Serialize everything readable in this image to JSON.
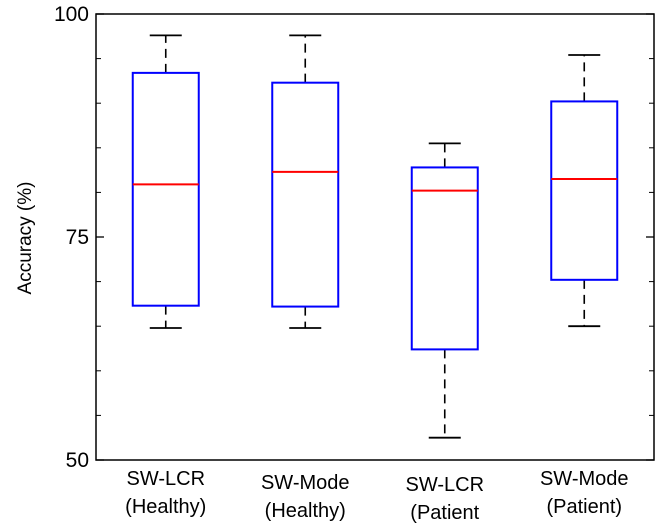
{
  "chart_data": {
    "type": "boxplot",
    "ylabel": "Accuracy (%)",
    "ylim": [
      50,
      100
    ],
    "yticks": [
      50,
      75,
      100
    ],
    "ytick_labels": [
      "50",
      "75",
      "100"
    ],
    "minor_yticks": [
      55,
      60,
      65,
      70,
      80,
      85,
      90,
      95
    ],
    "grid": false,
    "categories": [
      [
        "SW-LCR",
        "(Healthy)"
      ],
      [
        "SW-Mode",
        "(Healthy)"
      ],
      [
        "SW-LCR",
        "(Patient"
      ],
      [
        "SW-Mode",
        "(Patient)"
      ]
    ],
    "boxes": [
      {
        "whisker_low": 64.8,
        "q1": 67.3,
        "median": 80.9,
        "q3": 93.4,
        "whisker_high": 97.6
      },
      {
        "whisker_low": 64.8,
        "q1": 67.2,
        "median": 82.3,
        "q3": 92.3,
        "whisker_high": 97.6
      },
      {
        "whisker_low": 52.5,
        "q1": 62.4,
        "median": 80.2,
        "q3": 82.8,
        "whisker_high": 85.5
      },
      {
        "whisker_low": 65.0,
        "q1": 70.2,
        "median": 81.5,
        "q3": 90.2,
        "whisker_high": 95.4
      }
    ],
    "colors": {
      "box": "#0000ff",
      "median": "#ff0000",
      "whisker": "#000000",
      "axis": "#000000"
    }
  }
}
